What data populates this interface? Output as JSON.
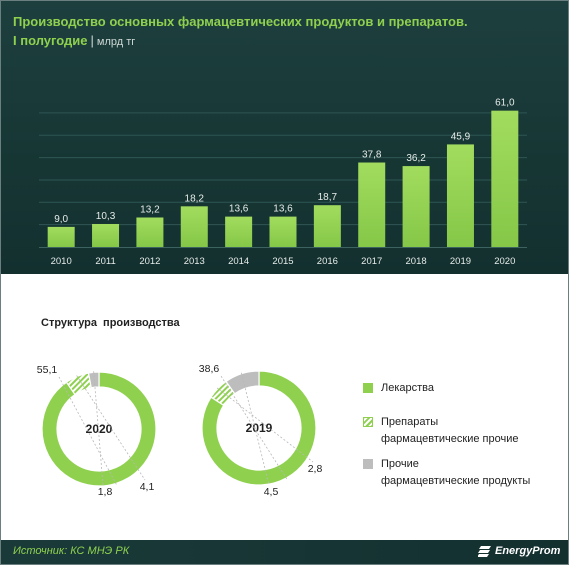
{
  "header": {
    "title_line1": "Производство основных фармацевтических продуктов и препаратов.",
    "title_line2_accent": "I полугодие",
    "title_separator": "|",
    "title_unit": "млрд тг"
  },
  "chart_data": [
    {
      "type": "bar",
      "title": "Производство основных фармацевтических продуктов и препаратов. I полугодие",
      "unit": "млрд тг",
      "categories": [
        "2010",
        "2011",
        "2012",
        "2013",
        "2014",
        "2015",
        "2016",
        "2017",
        "2018",
        "2019",
        "2020"
      ],
      "values": [
        9.0,
        10.3,
        13.2,
        18.2,
        13.6,
        13.6,
        18.7,
        37.8,
        36.2,
        45.9,
        61.0
      ],
      "labels": [
        "9,0",
        "10,3",
        "13,2",
        "18,2",
        "13,6",
        "13,6",
        "18,7",
        "37,8",
        "36,2",
        "45,9",
        "61,0"
      ],
      "ylim": [
        0,
        70
      ],
      "grid": true,
      "bar_color": "#8fd14f"
    },
    {
      "type": "pie",
      "title": "Структура  производства",
      "donuts": [
        {
          "center_label": "2020",
          "values": [
            55.1,
            4.1,
            1.8
          ],
          "labels": [
            "55,1",
            "4,1",
            "1,8"
          ]
        },
        {
          "center_label": "2019",
          "values": [
            38.6,
            2.8,
            4.5
          ],
          "labels": [
            "38,6",
            "2,8",
            "4,5"
          ]
        }
      ],
      "legend": [
        {
          "lines": [
            "Лекарства"
          ],
          "color": "#8fd14f",
          "pattern": "solid"
        },
        {
          "lines": [
            "Препараты",
            "фармацевтические прочие"
          ],
          "color": "#8fd14f",
          "pattern": "hatched"
        },
        {
          "lines": [
            "Прочие",
            "фармацевтические продукты"
          ],
          "color": "#bdbdbd",
          "pattern": "solid"
        }
      ],
      "legend_position": "right"
    }
  ],
  "pie_section": {
    "title": "Структура  производства"
  },
  "footer": {
    "source": "Источник: КС МНЭ РК",
    "logo_text": "EnergyProm"
  },
  "colors": {
    "accent_green": "#8fd14f",
    "panel_dark": "#163634",
    "gray_segment": "#bdbdbd"
  }
}
